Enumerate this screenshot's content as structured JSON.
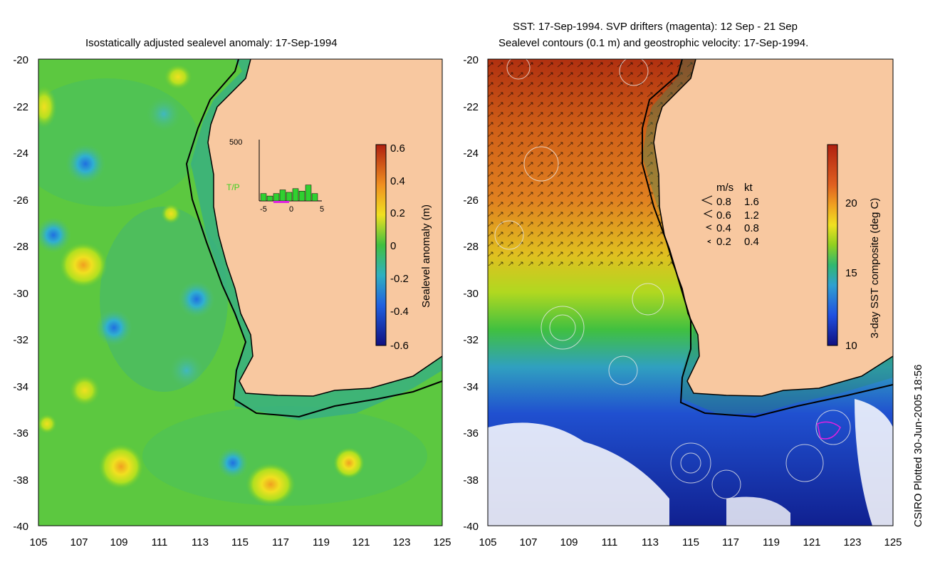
{
  "left": {
    "title": "Isostatically adjusted sealevel anomaly: 17-Sep-1994",
    "colorbar_label": "Sealevel anomaly (m)",
    "colorbar_ticks": [
      "0.6",
      "0.4",
      "0.2",
      "0",
      "-0.2",
      "-0.4",
      "-0.6"
    ],
    "inset": {
      "ymax": "500",
      "label": "T/P",
      "xticks": [
        "-5",
        "0",
        "5"
      ],
      "bars": [
        60,
        40,
        60,
        90,
        70,
        100,
        80,
        130,
        60
      ]
    }
  },
  "right": {
    "title_line1": "SST: 17-Sep-1994. SVP drifters (magenta): 12 Sep - 21 Sep",
    "title_line2": "Sealevel contours (0.1 m) and geostrophic velocity: 17-Sep-1994.",
    "colorbar_label": "3-day SST composite (deg C)",
    "colorbar_ticks": [
      "20",
      "15",
      "10"
    ],
    "velocity_legend": {
      "header_ms": "m/s",
      "header_kt": "kt",
      "rows": [
        {
          "ms": "0.8",
          "kt": "1.6"
        },
        {
          "ms": "0.6",
          "kt": "1.2"
        },
        {
          "ms": "0.4",
          "kt": "0.8"
        },
        {
          "ms": "0.2",
          "kt": "0.4"
        }
      ]
    }
  },
  "axes": {
    "yticks": [
      "-20",
      "-22",
      "-24",
      "-26",
      "-28",
      "-30",
      "-32",
      "-34",
      "-36",
      "-38",
      "-40"
    ],
    "xticks": [
      "105",
      "107",
      "109",
      "111",
      "113",
      "115",
      "117",
      "119",
      "121",
      "123",
      "125"
    ]
  },
  "footer": "CSIRO Plotted 30-Jun-2005 18:56",
  "colors": {
    "land": "#f8c8a0",
    "ocean_base": "#50c040",
    "coast": "#000000"
  }
}
